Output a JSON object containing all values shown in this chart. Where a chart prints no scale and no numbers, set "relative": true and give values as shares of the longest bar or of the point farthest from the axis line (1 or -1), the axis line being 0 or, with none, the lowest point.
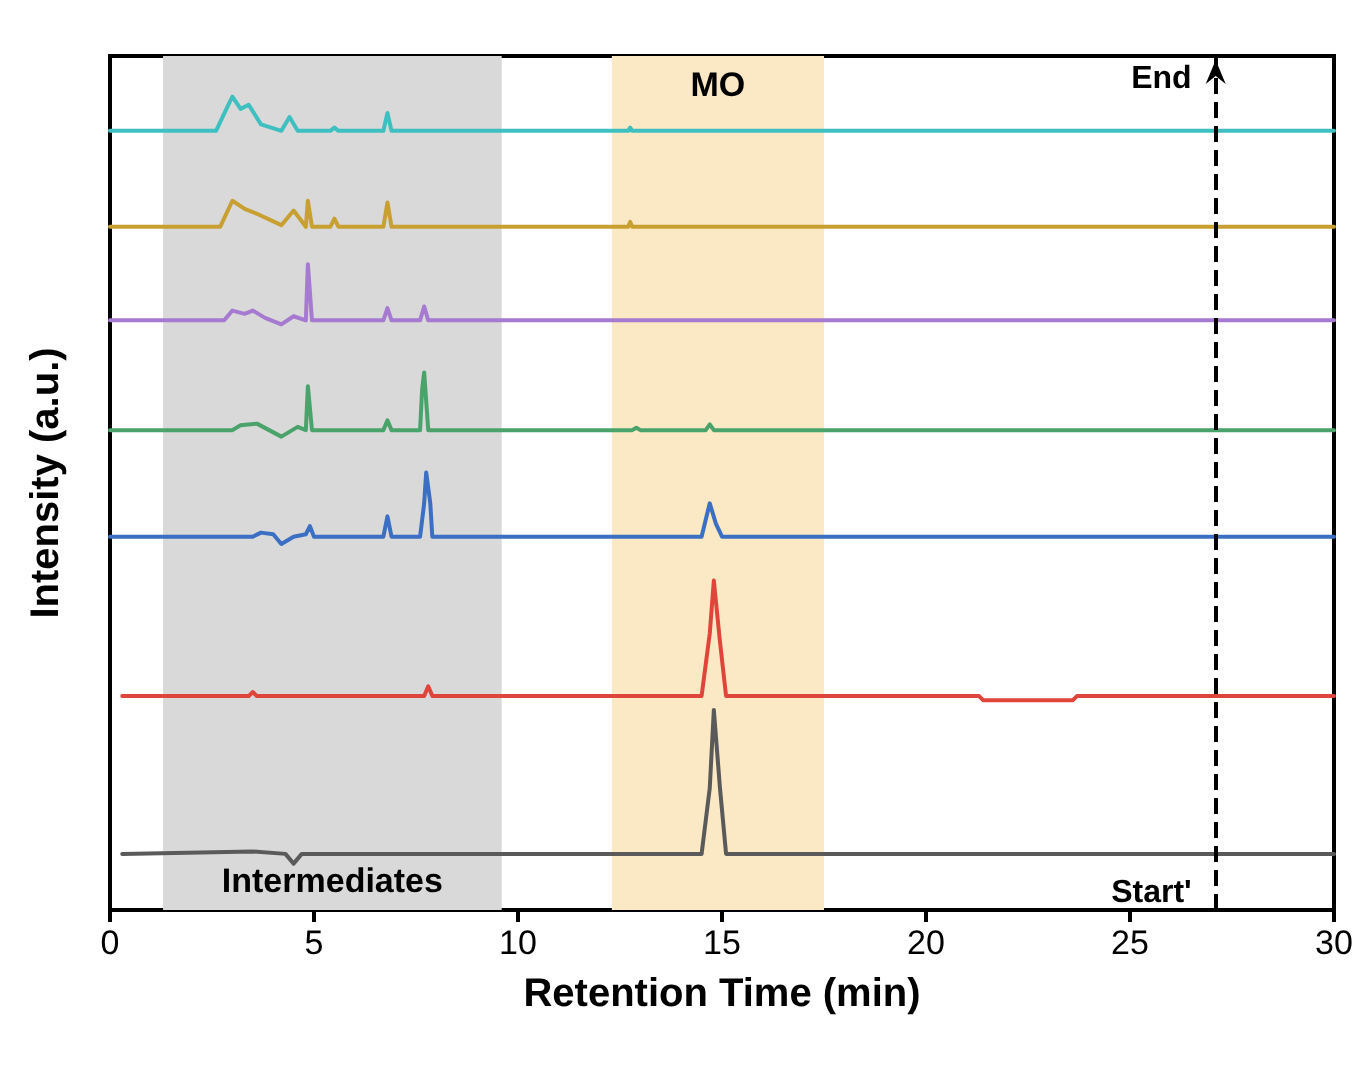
{
  "chart_data": {
    "type": "line",
    "xlabel": "Retention Time (min)",
    "ylabel": "Intensity (a.u.)",
    "relative": true,
    "tick_labels": "x",
    "grid": false,
    "marker": "none",
    "line_style": "solid",
    "xlim": [
      0,
      30
    ],
    "xticks": [
      0,
      5,
      10,
      15,
      20,
      25,
      30
    ],
    "series": [
      {
        "color": "#5a5a5a",
        "x": [
          0.3,
          3.5,
          4.3,
          4.5,
          4.7,
          14.5,
          14.7,
          14.8,
          14.95,
          15.1,
          30
        ],
        "values": [
          0.069,
          0.072,
          0.069,
          0.057,
          0.069,
          0.069,
          0.15,
          0.246,
          0.15,
          0.069,
          0.069
        ]
      },
      {
        "color": "#e0453c",
        "x": [
          0.3,
          3.4,
          3.5,
          3.6,
          7.7,
          7.8,
          7.9,
          14.5,
          14.7,
          14.8,
          14.95,
          15.1,
          21.3,
          21.4,
          23.6,
          23.7,
          30
        ],
        "values": [
          0.263,
          0.263,
          0.268,
          0.263,
          0.263,
          0.275,
          0.263,
          0.263,
          0.34,
          0.405,
          0.33,
          0.263,
          0.263,
          0.258,
          0.258,
          0.263,
          0.263
        ]
      },
      {
        "color": "#3a6fc4",
        "x": [
          0,
          3.5,
          3.7,
          4.0,
          4.2,
          4.5,
          4.8,
          4.9,
          5.0,
          6.7,
          6.8,
          6.9,
          7.6,
          7.7,
          7.75,
          7.85,
          7.9,
          14.5,
          14.65,
          14.7,
          14.85,
          15.0,
          30
        ],
        "values": [
          0.459,
          0.459,
          0.464,
          0.462,
          0.45,
          0.459,
          0.462,
          0.472,
          0.459,
          0.459,
          0.484,
          0.459,
          0.459,
          0.5,
          0.538,
          0.5,
          0.459,
          0.459,
          0.49,
          0.5,
          0.475,
          0.459,
          0.459
        ]
      },
      {
        "color": "#4aa36b",
        "x": [
          0,
          3.0,
          3.2,
          3.6,
          4.2,
          4.6,
          4.8,
          4.85,
          4.95,
          6.7,
          6.8,
          6.9,
          7.6,
          7.65,
          7.7,
          7.8,
          12.8,
          12.9,
          13.0,
          14.6,
          14.7,
          14.8,
          30
        ],
        "values": [
          0.59,
          0.59,
          0.596,
          0.598,
          0.582,
          0.594,
          0.59,
          0.644,
          0.59,
          0.59,
          0.602,
          0.59,
          0.59,
          0.64,
          0.661,
          0.59,
          0.59,
          0.593,
          0.59,
          0.59,
          0.597,
          0.59,
          0.59
        ]
      },
      {
        "color": "#a57ad0",
        "x": [
          0,
          2.8,
          3.0,
          3.3,
          3.5,
          3.8,
          4.2,
          4.5,
          4.8,
          4.85,
          4.95,
          6.7,
          6.8,
          6.9,
          7.6,
          7.7,
          7.8,
          30
        ],
        "values": [
          0.725,
          0.725,
          0.737,
          0.733,
          0.737,
          0.728,
          0.72,
          0.73,
          0.725,
          0.794,
          0.725,
          0.725,
          0.74,
          0.725,
          0.725,
          0.742,
          0.725,
          0.725
        ]
      },
      {
        "color": "#c8a032",
        "x": [
          0,
          2.7,
          3.0,
          3.3,
          3.6,
          4.2,
          4.5,
          4.8,
          4.85,
          4.95,
          5.4,
          5.5,
          5.6,
          6.7,
          6.8,
          6.9,
          12.7,
          12.75,
          12.8,
          30
        ],
        "values": [
          0.84,
          0.84,
          0.872,
          0.862,
          0.856,
          0.842,
          0.86,
          0.84,
          0.872,
          0.84,
          0.84,
          0.85,
          0.84,
          0.84,
          0.87,
          0.84,
          0.84,
          0.846,
          0.84,
          0.84
        ]
      },
      {
        "color": "#3fc0c0",
        "x": [
          0,
          2.6,
          2.9,
          3.0,
          3.2,
          3.4,
          3.7,
          4.2,
          4.4,
          4.6,
          5.4,
          5.5,
          5.6,
          6.7,
          6.8,
          6.9,
          12.7,
          12.75,
          12.8,
          30
        ],
        "values": [
          0.958,
          0.958,
          0.99,
          1.0,
          0.985,
          0.99,
          0.966,
          0.958,
          0.975,
          0.958,
          0.958,
          0.962,
          0.958,
          0.958,
          0.98,
          0.958,
          0.958,
          0.962,
          0.958,
          0.958
        ]
      }
    ],
    "bands": [
      {
        "axis": "x",
        "from": 1.3,
        "to": 9.6,
        "label": "Intermediates",
        "color": "#d9d9d9"
      },
      {
        "axis": "x",
        "from": 12.3,
        "to": 17.5,
        "label": "MO",
        "color": "#fbe8c4"
      }
    ],
    "ref_lines": [
      {
        "axis": "x",
        "value": 27.1,
        "label": null,
        "color": "#000000",
        "line_style": "dashed"
      }
    ],
    "annotations": [
      "End",
      "Start'"
    ]
  }
}
